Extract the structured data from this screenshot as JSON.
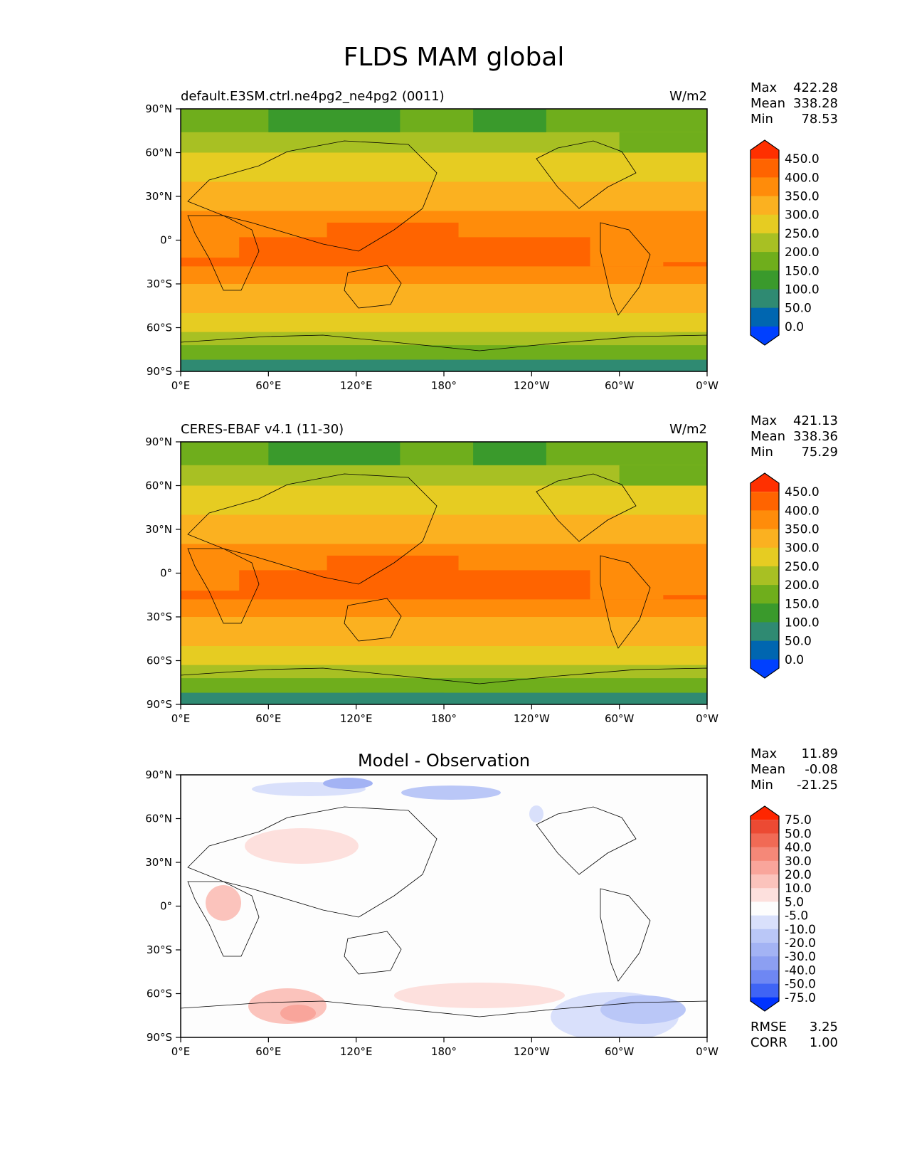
{
  "figure_title": "FLDS MAM global",
  "colors": {
    "main": [
      "#0040ff",
      "#0066b0",
      "#2f8a72",
      "#3a9a2c",
      "#6fae1c",
      "#a8c023",
      "#e6cc22",
      "#fbb120",
      "#ff8c0a",
      "#ff6400",
      "#ff3000"
    ],
    "diff": [
      "#0033ff",
      "#3f64f5",
      "#6e87f3",
      "#8c9ff2",
      "#a3b3f4",
      "#bac7f7",
      "#d9e0fb",
      "#fdfdfd",
      "#fde0dd",
      "#fbc3bc",
      "#f9a59b",
      "#f58878",
      "#f16a55",
      "#ec4a33",
      "#ff2600"
    ],
    "map_line": "#000000"
  },
  "chart_data": [
    {
      "type": "heatmap",
      "title": "",
      "left_title": "default.E3SM.ctrl.ne4pg2_ne4pg2 (0011)",
      "units": "W/m2",
      "stats": [
        {
          "label": "Max",
          "value": "422.28"
        },
        {
          "label": "Mean",
          "value": "338.28"
        },
        {
          "label": "Min",
          "value": "78.53"
        }
      ],
      "xticks": [
        "0°E",
        "60°E",
        "120°E",
        "180°",
        "120°W",
        "60°W",
        "0°W"
      ],
      "yticks": [
        "90°N",
        "60°N",
        "30°N",
        "0°",
        "30°S",
        "60°S",
        "90°S"
      ],
      "xlim": [
        0,
        360
      ],
      "ylim": [
        -90,
        90
      ],
      "colorbar_ticks": [
        "450.0",
        "400.0",
        "350.0",
        "300.0",
        "250.0",
        "200.0",
        "150.0",
        "100.0",
        "50.0",
        "0.0"
      ],
      "colorbar_extend": "both"
    },
    {
      "type": "heatmap",
      "title": "",
      "left_title": "CERES-EBAF v4.1 (11-30)",
      "units": "W/m2",
      "stats": [
        {
          "label": "Max",
          "value": "421.13"
        },
        {
          "label": "Mean",
          "value": "338.36"
        },
        {
          "label": "Min",
          "value": "75.29"
        }
      ],
      "xticks": [
        "0°E",
        "60°E",
        "120°E",
        "180°",
        "120°W",
        "60°W",
        "0°W"
      ],
      "yticks": [
        "90°N",
        "60°N",
        "30°N",
        "0°",
        "30°S",
        "60°S",
        "90°S"
      ],
      "xlim": [
        0,
        360
      ],
      "ylim": [
        -90,
        90
      ],
      "colorbar_ticks": [
        "450.0",
        "400.0",
        "350.0",
        "300.0",
        "250.0",
        "200.0",
        "150.0",
        "100.0",
        "50.0",
        "0.0"
      ],
      "colorbar_extend": "both"
    },
    {
      "type": "heatmap",
      "title": "Model - Observation",
      "left_title": "",
      "units": "",
      "stats": [
        {
          "label": "Max",
          "value": "11.89"
        },
        {
          "label": "Mean",
          "value": "-0.08"
        },
        {
          "label": "Min",
          "value": "-21.25"
        }
      ],
      "extra_stats": [
        {
          "label": "RMSE",
          "value": "3.25"
        },
        {
          "label": "CORR",
          "value": "1.00"
        }
      ],
      "xticks": [
        "0°E",
        "60°E",
        "120°E",
        "180°",
        "120°W",
        "60°W",
        "0°W"
      ],
      "yticks": [
        "90°N",
        "60°N",
        "30°N",
        "0°",
        "30°S",
        "60°S",
        "90°S"
      ],
      "xlim": [
        0,
        360
      ],
      "ylim": [
        -90,
        90
      ],
      "colorbar_ticks": [
        "75.0",
        "50.0",
        "40.0",
        "30.0",
        "20.0",
        "10.0",
        "5.0",
        "-5.0",
        "-10.0",
        "-20.0",
        "-30.0",
        "-40.0",
        "-50.0",
        "-75.0"
      ],
      "colorbar_extend": "both"
    }
  ]
}
